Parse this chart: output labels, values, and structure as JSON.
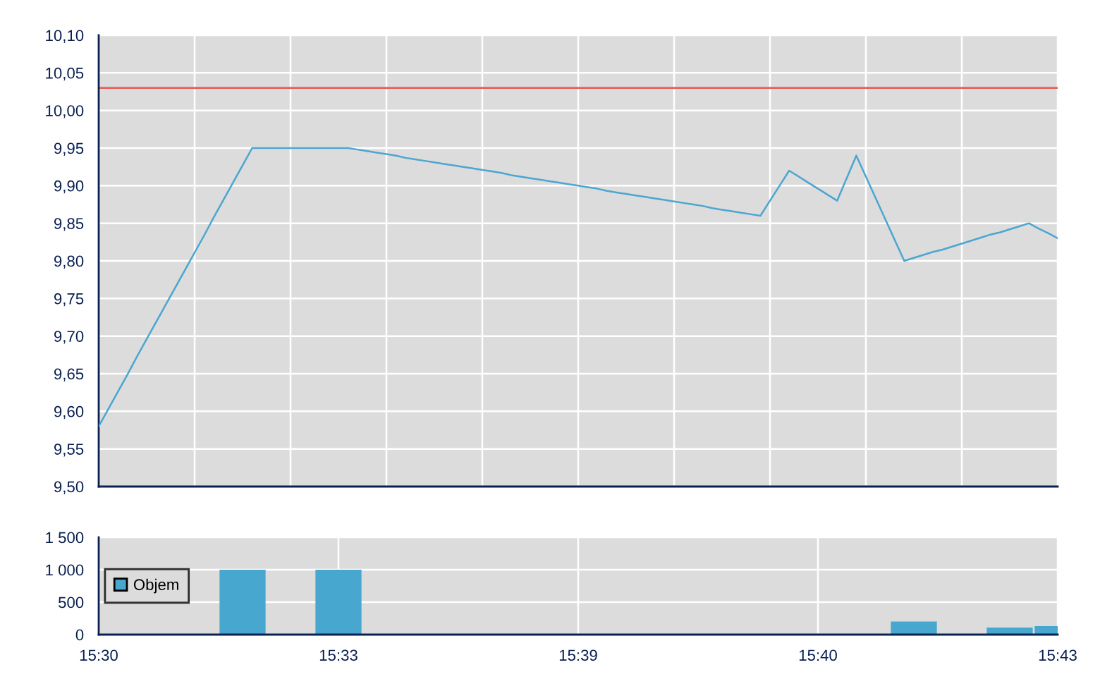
{
  "chart_data": [
    {
      "type": "line",
      "categories": [
        null,
        null,
        null,
        null,
        null,
        null,
        null,
        null,
        null,
        null,
        null,
        null,
        null,
        null,
        null,
        null,
        null,
        null,
        null,
        null,
        null,
        null,
        null,
        null,
        null,
        null,
        null,
        null,
        null,
        null,
        null,
        null,
        null,
        null,
        null,
        null,
        null,
        null,
        null,
        null,
        null,
        null,
        null,
        null,
        null,
        null,
        null,
        null,
        null,
        null,
        null,
        null,
        null,
        null,
        null,
        null,
        null,
        null,
        null,
        null,
        null,
        null,
        null,
        null,
        null,
        null,
        null,
        null,
        null,
        null,
        null,
        null,
        null,
        null,
        null,
        null,
        null,
        null,
        null,
        null,
        null,
        null,
        null,
        null,
        null,
        null,
        null,
        null,
        null,
        null,
        null,
        null,
        null,
        null,
        null,
        null,
        null,
        null,
        null,
        null,
        null
      ],
      "series": [
        {
          "color": "#4ba6d0",
          "values": [
            9.58,
            9.603,
            9.626,
            9.649,
            9.673,
            9.696,
            9.719,
            9.742,
            9.765,
            9.788,
            9.811,
            9.834,
            9.858,
            9.881,
            9.904,
            9.927,
            9.95,
            9.95,
            9.95,
            9.95,
            9.95,
            9.95,
            9.95,
            9.95,
            9.95,
            9.95,
            9.95,
            9.948,
            9.946,
            9.944,
            9.942,
            9.94,
            9.937,
            9.935,
            9.933,
            9.931,
            9.929,
            9.927,
            9.925,
            9.923,
            9.921,
            9.919,
            9.917,
            9.914,
            9.912,
            9.91,
            9.908,
            9.906,
            9.904,
            9.902,
            9.9,
            9.898,
            9.896,
            9.893,
            9.891,
            9.889,
            9.887,
            9.885,
            9.883,
            9.881,
            9.879,
            9.877,
            9.875,
            9.873,
            9.87,
            9.868,
            9.866,
            9.864,
            9.862,
            9.86,
            9.88,
            9.9,
            9.92,
            9.912,
            9.904,
            9.896,
            9.888,
            9.88,
            9.91,
            9.94,
            9.912,
            9.884,
            9.856,
            9.828,
            9.8,
            9.804,
            9.808,
            9.812,
            9.815,
            9.819,
            9.823,
            9.827,
            9.831,
            9.835,
            9.838,
            9.842,
            9.846,
            9.85,
            9.843,
            9.837,
            9.83
          ]
        }
      ],
      "ylim": [
        9.5,
        10.1
      ],
      "yticks": [
        {
          "value": 9.5,
          "label": "9,50"
        },
        {
          "value": 9.55,
          "label": "9,55"
        },
        {
          "value": 9.6,
          "label": "9,60"
        },
        {
          "value": 9.65,
          "label": "9,65"
        },
        {
          "value": 9.7,
          "label": "9,70"
        },
        {
          "value": 9.75,
          "label": "9,75"
        },
        {
          "value": 9.8,
          "label": "9,80"
        },
        {
          "value": 9.85,
          "label": "9,85"
        },
        {
          "value": 9.9,
          "label": "9,90"
        },
        {
          "value": 9.95,
          "label": "9,95"
        },
        {
          "value": 10.0,
          "label": "10,00"
        },
        {
          "value": 10.05,
          "label": "10,05"
        },
        {
          "value": 10.1,
          "label": "10,10"
        }
      ],
      "ref_lines": [
        {
          "axis": "y",
          "value": 10.03,
          "color": "#e8605a"
        }
      ],
      "grid": true
    },
    {
      "type": "bar",
      "categories": [
        "15:30",
        null,
        null,
        null,
        null,
        "15:33",
        null,
        null,
        null,
        null,
        "15:39",
        null,
        null,
        null,
        null,
        "15:40",
        null,
        null,
        null,
        null,
        "15:43"
      ],
      "series": [
        {
          "name": "Objem",
          "color": "#47a7cf",
          "values": [
            null,
            null,
            null,
            1000,
            null,
            1000,
            null,
            null,
            null,
            null,
            null,
            null,
            null,
            null,
            null,
            null,
            null,
            200,
            null,
            110,
            130
          ]
        }
      ],
      "ylim": [
        0,
        1500
      ],
      "yticks": [
        0,
        500,
        {
          "value": 1000,
          "label": "1 000"
        },
        {
          "value": 1500,
          "label": "1 500"
        }
      ],
      "grid": true,
      "legend": "left"
    }
  ]
}
